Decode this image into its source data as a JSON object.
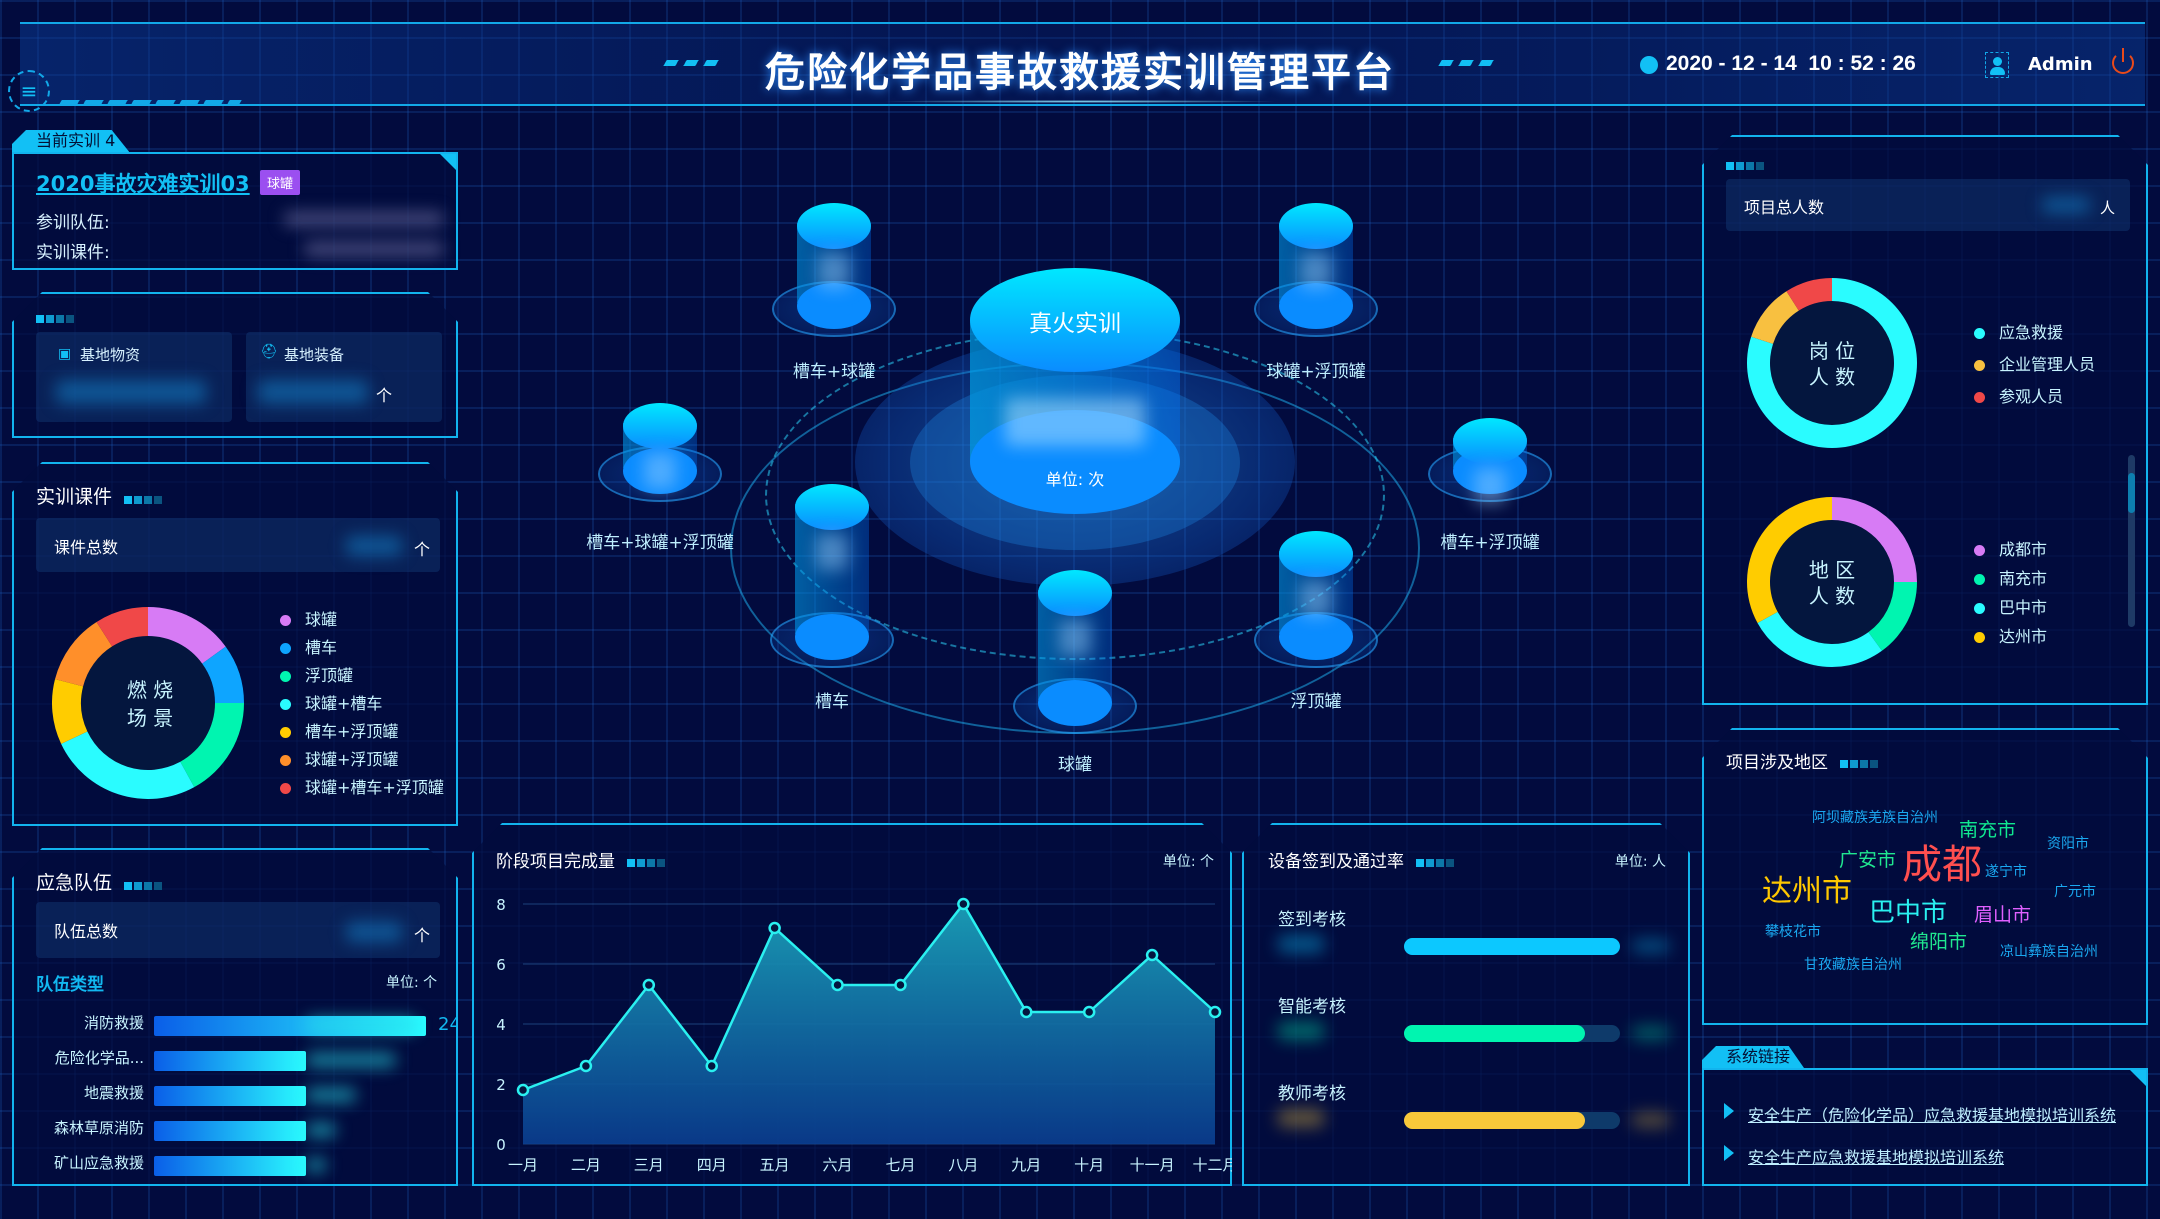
{
  "header": {
    "title": "危险化学品事故救援实训管理平台",
    "datetime": "2020 - 12 - 14  10 : 52 : 26",
    "user": "Admin"
  },
  "current": {
    "tag": "当前实训 4",
    "name": "2020事故灾难实训03",
    "badge": "球罐",
    "team_label": "参训队伍:",
    "course_label": "实训课件:",
    "badge_color": "#9b4ff0"
  },
  "base": {
    "materials_label": "基地物资",
    "equipment_label": "基地装备",
    "unit": "个"
  },
  "courseware": {
    "title": "实训课件",
    "total_label": "课件总数",
    "unit": "个",
    "donut_center": [
      "燃 烧",
      "场 景"
    ],
    "legend": [
      {
        "label": "球罐",
        "color": "#d77bf5",
        "value": 15
      },
      {
        "label": "槽车",
        "color": "#0ea5ff",
        "value": 10
      },
      {
        "label": "浮顶罐",
        "color": "#00f5b0",
        "value": 17
      },
      {
        "label": "球罐+槽车",
        "color": "#2afcff",
        "value": 26
      },
      {
        "label": "槽车+浮顶罐",
        "color": "#ffcc00",
        "value": 11
      },
      {
        "label": "球罐+浮顶罐",
        "color": "#ff8f2a",
        "value": 12
      },
      {
        "label": "球罐+槽车+浮顶罐",
        "color": "#f04848",
        "value": 9
      }
    ]
  },
  "teams": {
    "title": "应急队伍",
    "total_label": "队伍总数",
    "unit": "个",
    "type_label": "队伍类型",
    "unit_label": "单位: 个",
    "bars": [
      {
        "label": "消防救援",
        "value": "24"
      },
      {
        "label": "危险化学品..."
      },
      {
        "label": "地震救援"
      },
      {
        "label": "森林草原消防"
      },
      {
        "label": "矿山应急救援"
      }
    ]
  },
  "center": {
    "main_label": "真火实训",
    "unit_label": "单位: 次",
    "items": [
      {
        "label": "槽车+球罐"
      },
      {
        "label": "球罐+浮顶罐"
      },
      {
        "label": "槽车+球罐+浮顶罐"
      },
      {
        "label": "槽车+浮顶罐"
      },
      {
        "label": "槽车"
      },
      {
        "label": "浮顶罐"
      },
      {
        "label": "球罐"
      }
    ]
  },
  "chart_data": {
    "type": "area",
    "title": "阶段项目完成量",
    "unit_label": "单位: 个",
    "categories": [
      "一月",
      "二月",
      "三月",
      "四月",
      "五月",
      "六月",
      "七月",
      "八月",
      "九月",
      "十月",
      "十一月",
      "十二月"
    ],
    "values": [
      1.8,
      2.6,
      5.3,
      2.6,
      7.2,
      5.3,
      5.3,
      8,
      4.4,
      4.4,
      6.3,
      4.4
    ],
    "ylim": [
      0,
      8
    ],
    "yticks": [
      0,
      2,
      4,
      6,
      8
    ],
    "grid": true,
    "color": "#2af0f0"
  },
  "signin": {
    "title": "设备签到及通过率",
    "unit_label": "单位: 人",
    "rows": [
      {
        "label": "签到考核",
        "rate": 1.0,
        "color": "#0cc8ff"
      },
      {
        "label": "智能考核",
        "rate": 0.84,
        "color": "#00f5b0"
      },
      {
        "label": "教师考核",
        "rate": 0.84,
        "color": "#f8c83a"
      }
    ]
  },
  "people": {
    "total_label": "项目总人数",
    "unit": "人",
    "post": {
      "center": [
        "岗 位",
        "人 数"
      ],
      "legend": [
        {
          "label": "应急救援",
          "color": "#2afcff",
          "value": 80
        },
        {
          "label": "企业管理人员",
          "color": "#f8c040",
          "value": 11
        },
        {
          "label": "参观人员",
          "color": "#f04848",
          "value": 9
        }
      ]
    },
    "region": {
      "center": [
        "地 区",
        "人 数"
      ],
      "legend": [
        {
          "label": "成都市",
          "color": "#d77bf5",
          "value": 25
        },
        {
          "label": "南充市",
          "color": "#00f5b0",
          "value": 15
        },
        {
          "label": "巴中市",
          "color": "#2afcff",
          "value": 27
        },
        {
          "label": "达州市",
          "color": "#ffcc00",
          "value": 33
        }
      ]
    }
  },
  "regions": {
    "title": "项目涉及地区",
    "words": [
      {
        "text": "阿坝藏族羌族自治州",
        "color": "#1aa8f0",
        "weight": 1
      },
      {
        "text": "南充市",
        "color": "#10e890",
        "weight": 3
      },
      {
        "text": "资阳市",
        "color": "#1aa8f0",
        "weight": 1
      },
      {
        "text": "广安市",
        "color": "#20e890",
        "weight": 3
      },
      {
        "text": "成都",
        "color": "#ff4f4f",
        "weight": 8
      },
      {
        "text": "遂宁市",
        "color": "#1aa8f0",
        "weight": 1
      },
      {
        "text": "达州市",
        "color": "#ffc800",
        "weight": 6
      },
      {
        "text": "广元市",
        "color": "#1aa8f0",
        "weight": 1
      },
      {
        "text": "巴中市",
        "color": "#2af0f0",
        "weight": 5
      },
      {
        "text": "眉山市",
        "color": "#e060ff",
        "weight": 3
      },
      {
        "text": "攀枝花市",
        "color": "#1aa8f0",
        "weight": 1
      },
      {
        "text": "绵阳市",
        "color": "#20e890",
        "weight": 3
      },
      {
        "text": "凉山彝族自治州",
        "color": "#1aa8f0",
        "weight": 1
      },
      {
        "text": "甘孜藏族自治州",
        "color": "#1aa8f0",
        "weight": 1
      }
    ]
  },
  "links": {
    "title": "系统链接",
    "items": [
      "安全生产（危险化学品）应急救援基地模拟培训系统",
      "安全生产应急救援基地模拟培训系统"
    ]
  }
}
